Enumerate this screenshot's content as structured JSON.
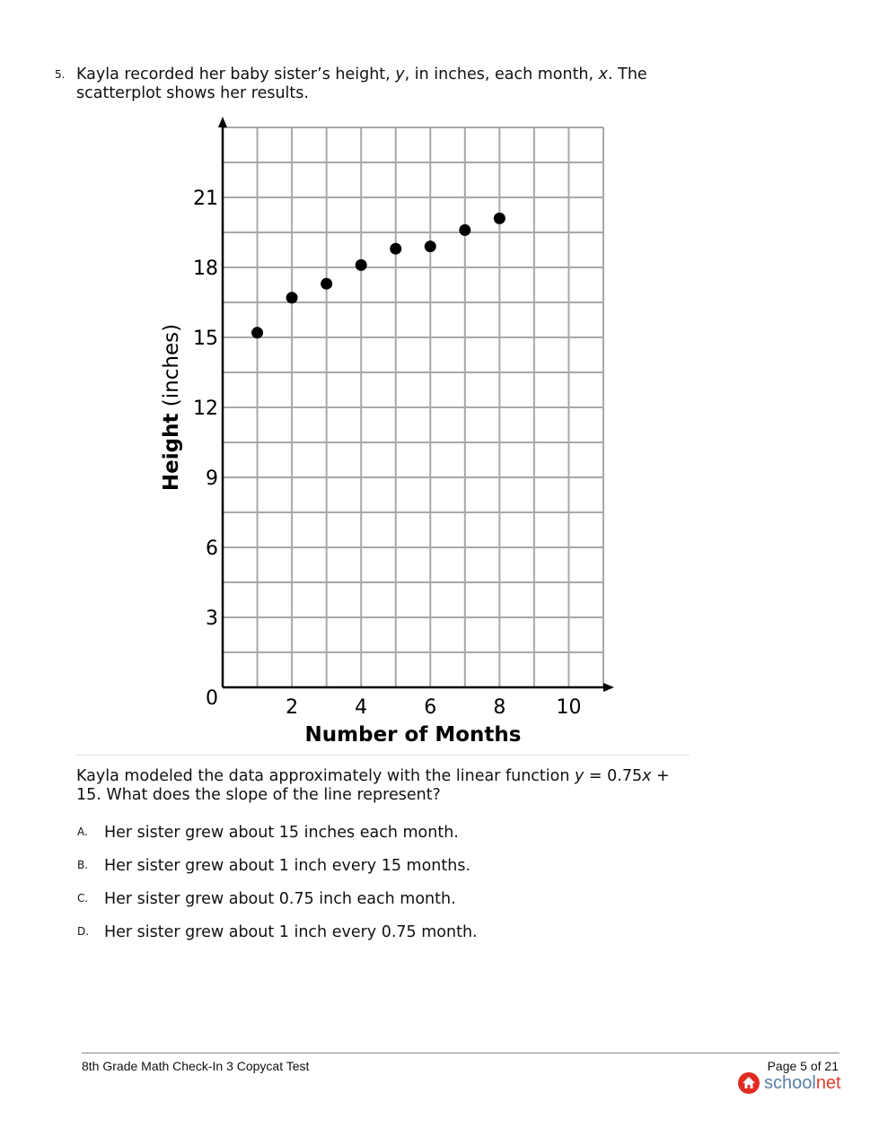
{
  "question": {
    "number": "5.",
    "text_parts": [
      "Kayla recorded her baby sister’s height, ",
      "y",
      ", in inches, each month, ",
      "x",
      ". The scatterplot shows her results."
    ],
    "stem_parts": [
      "Kayla modeled the data approximately with the linear function ",
      "y",
      " = 0.75",
      "x",
      " + 15. What does the slope of the line represent?"
    ],
    "choices": [
      {
        "letter": "A.",
        "text": "Her sister grew about 15 inches each month."
      },
      {
        "letter": "B.",
        "text": "Her sister grew about 1 inch every 15 months."
      },
      {
        "letter": "C.",
        "text": "Her sister grew about 0.75 inch each month."
      },
      {
        "letter": "D.",
        "text": "Her sister grew about 1 inch every 0.75 month."
      }
    ]
  },
  "chart_data": {
    "type": "scatter",
    "xlabel": "Number of Months",
    "ylabel_bold": "Height",
    "ylabel_rest": " (inches)",
    "x": [
      1,
      2,
      3,
      4,
      5,
      6,
      7,
      8
    ],
    "y": [
      15.2,
      16.7,
      17.3,
      18.1,
      18.8,
      18.9,
      19.6,
      20.1
    ],
    "xlim": [
      0,
      11
    ],
    "ylim": [
      0,
      24
    ],
    "xticks": [
      2,
      4,
      6,
      8,
      10
    ],
    "yticks": [
      3,
      6,
      9,
      12,
      15,
      18,
      21
    ],
    "origin_label": "0",
    "grid": true,
    "x_grid_step": 1,
    "y_grid_step": 1.5,
    "point_color": "#000000",
    "grid_color": "#a8a8a8"
  },
  "footer": {
    "title": "8th Grade Math Check-In 3 Copycat Test",
    "page": "Page 5 of 21",
    "logo_text_a": "school",
    "logo_text_b": "net"
  }
}
